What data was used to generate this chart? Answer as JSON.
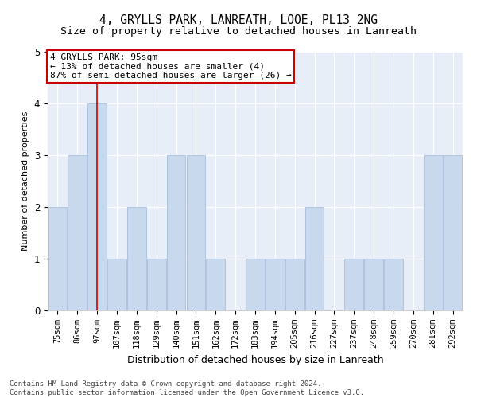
{
  "title": "4, GRYLLS PARK, LANREATH, LOOE, PL13 2NG",
  "subtitle": "Size of property relative to detached houses in Lanreath",
  "xlabel": "Distribution of detached houses by size in Lanreath",
  "ylabel": "Number of detached properties",
  "categories": [
    "75sqm",
    "86sqm",
    "97sqm",
    "107sqm",
    "118sqm",
    "129sqm",
    "140sqm",
    "151sqm",
    "162sqm",
    "172sqm",
    "183sqm",
    "194sqm",
    "205sqm",
    "216sqm",
    "227sqm",
    "237sqm",
    "248sqm",
    "259sqm",
    "270sqm",
    "281sqm",
    "292sqm"
  ],
  "values": [
    2,
    3,
    4,
    1,
    2,
    1,
    3,
    3,
    1,
    0,
    1,
    1,
    1,
    2,
    0,
    1,
    1,
    1,
    0,
    3,
    3
  ],
  "bar_color": "#c9d9ed",
  "bar_edge_color": "#a8bedb",
  "highlight_index": 2,
  "highlight_line_color": "#cc0000",
  "annotation_text": "4 GRYLLS PARK: 95sqm\n← 13% of detached houses are smaller (4)\n87% of semi-detached houses are larger (26) →",
  "annotation_box_facecolor": "#ffffff",
  "annotation_box_edgecolor": "#cc0000",
  "ylim": [
    0,
    5
  ],
  "yticks": [
    0,
    1,
    2,
    3,
    4,
    5
  ],
  "background_color": "#e8eef8",
  "grid_color": "#ffffff",
  "footer_text": "Contains HM Land Registry data © Crown copyright and database right 2024.\nContains public sector information licensed under the Open Government Licence v3.0.",
  "title_fontsize": 10.5,
  "subtitle_fontsize": 9.5,
  "xlabel_fontsize": 9,
  "ylabel_fontsize": 8,
  "tick_fontsize": 7.5,
  "annotation_fontsize": 8,
  "footer_fontsize": 6.5
}
